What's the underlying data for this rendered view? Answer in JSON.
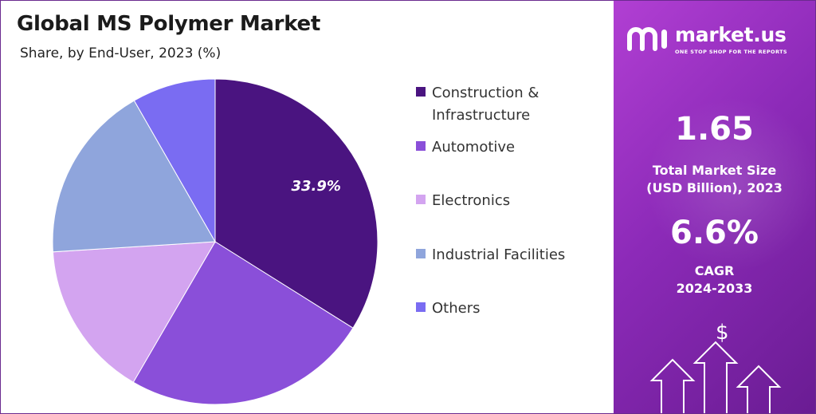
{
  "header": {
    "title": "Global MS Polymer Market",
    "subtitle": "Share, by End-User, 2023 (%)"
  },
  "chart_data": {
    "type": "pie",
    "title": "Global MS Polymer Market",
    "subtitle": "Share, by End-User, 2023 (%)",
    "categories": [
      "Construction & Infrastructure",
      "Automotive",
      "Electronics",
      "Industrial Facilities",
      "Others"
    ],
    "values": [
      33.9,
      24.5,
      15.6,
      17.7,
      8.3
    ],
    "colors": [
      "#4a1480",
      "#8a4fd9",
      "#d3a4f0",
      "#8fa5dc",
      "#7a6cf2"
    ],
    "data_labels": [
      "33.9%",
      "",
      "",
      "",
      ""
    ],
    "legend_position": "right"
  },
  "legend": {
    "items": [
      {
        "label": "Construction &",
        "label2": "Infrastructure"
      },
      {
        "label": "Automotive"
      },
      {
        "label": "Electronics"
      },
      {
        "label": "Industrial Facilities"
      },
      {
        "label": "Others"
      }
    ]
  },
  "brand": {
    "name": "market.us",
    "tagline": "ONE STOP SHOP FOR THE REPORTS"
  },
  "stats": {
    "market_size": "1.65",
    "market_size_label_1": "Total Market Size",
    "market_size_label_2": "(USD Billion), 2023",
    "cagr": "6.6%",
    "cagr_label_1": "CAGR",
    "cagr_label_2": "2024-2033",
    "currency_symbol": "$"
  }
}
